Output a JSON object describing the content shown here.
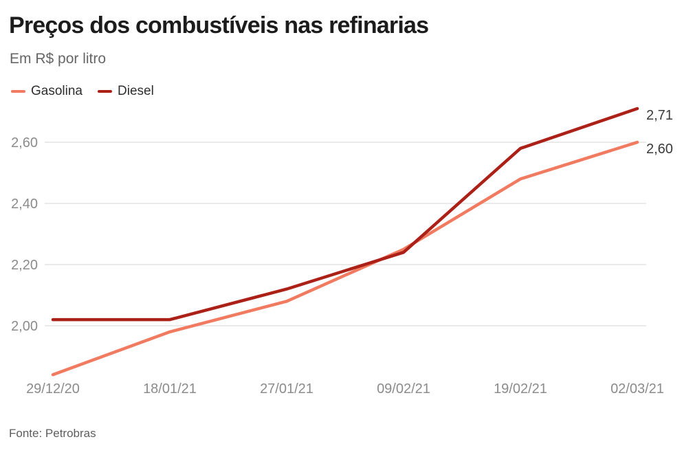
{
  "header": {
    "title": "Preços dos combustíveis nas refinarias",
    "subtitle": "Em R$ por litro"
  },
  "legend": [
    {
      "label": "Gasolina",
      "color": "#f07b60"
    },
    {
      "label": "Diesel",
      "color": "#ab2118"
    }
  ],
  "footer": {
    "source": "Fonte: Petrobras"
  },
  "colors": {
    "grid": "#e4e4e4",
    "axis_label": "#8b8b8b",
    "value_label": "#3a3a3a"
  },
  "chart_data": {
    "type": "line",
    "title": "Preços dos combustíveis nas refinarias",
    "subtitle": "Em R$ por litro",
    "source": "Fonte: Petrobras",
    "categories": [
      "29/12/20",
      "18/01/21",
      "27/01/21",
      "09/02/21",
      "19/02/21",
      "02/03/21"
    ],
    "series": [
      {
        "name": "Gasolina",
        "color": "#f07b60",
        "values": [
          1.84,
          1.98,
          2.08,
          2.25,
          2.48,
          2.6
        ],
        "end_label": "2,60"
      },
      {
        "name": "Diesel",
        "color": "#ab2118",
        "values": [
          2.02,
          2.02,
          2.12,
          2.24,
          2.58,
          2.71
        ],
        "end_label": "2,71"
      }
    ],
    "yticks": [
      2.0,
      2.2,
      2.4,
      2.6
    ],
    "ytick_labels": [
      "2,00",
      "2,20",
      "2,40",
      "2,60"
    ],
    "ylim": [
      1.8,
      2.78
    ],
    "grid": "horizontal-only",
    "legend_position": "top-left",
    "x_axis_line": false
  }
}
